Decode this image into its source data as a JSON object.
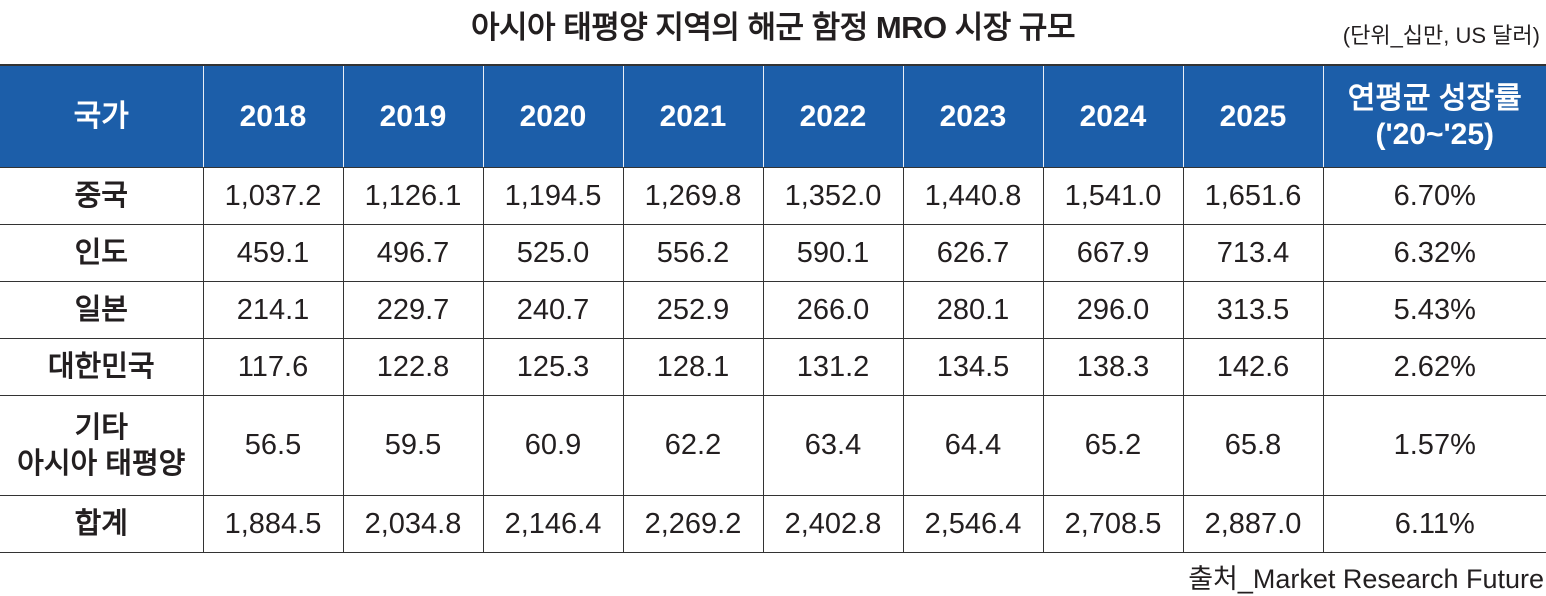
{
  "title": "아시아 태평양 지역의 해군 함정 MRO 시장 규모",
  "unit": "(단위_십만, US 달러)",
  "table": {
    "headers": [
      "국가",
      "2018",
      "2019",
      "2020",
      "2021",
      "2022",
      "2023",
      "2024",
      "2025",
      "연평균 성장률 ('20~'25)"
    ],
    "header_last_line1": "연평균 성장률",
    "header_last_line2": "('20~'25)",
    "rows": [
      {
        "country": "중국",
        "values": [
          "1,037.2",
          "1,126.1",
          "1,194.5",
          "1,269.8",
          "1,352.0",
          "1,440.8",
          "1,541.0",
          "1,651.6",
          "6.70%"
        ]
      },
      {
        "country": "인도",
        "values": [
          "459.1",
          "496.7",
          "525.0",
          "556.2",
          "590.1",
          "626.7",
          "667.9",
          "713.4",
          "6.32%"
        ]
      },
      {
        "country": "일본",
        "values": [
          "214.1",
          "229.7",
          "240.7",
          "252.9",
          "266.0",
          "280.1",
          "296.0",
          "313.5",
          "5.43%"
        ]
      },
      {
        "country": "대한민국",
        "values": [
          "117.6",
          "122.8",
          "125.3",
          "128.1",
          "131.2",
          "134.5",
          "138.3",
          "142.6",
          "2.62%"
        ]
      },
      {
        "country": "기타 아시아 태평양",
        "country_line1": "기타",
        "country_line2": "아시아 태평양",
        "values": [
          "56.5",
          "59.5",
          "60.9",
          "62.2",
          "63.4",
          "64.4",
          "65.2",
          "65.8",
          "1.57%"
        ]
      },
      {
        "country": "합계",
        "values": [
          "1,884.5",
          "2,034.8",
          "2,146.4",
          "2,269.2",
          "2,402.8",
          "2,546.4",
          "2,708.5",
          "2,887.0",
          "6.11%"
        ]
      }
    ]
  },
  "source": "출처_Market Research Future",
  "colors": {
    "header_bg": "#1c5ea9"
  }
}
